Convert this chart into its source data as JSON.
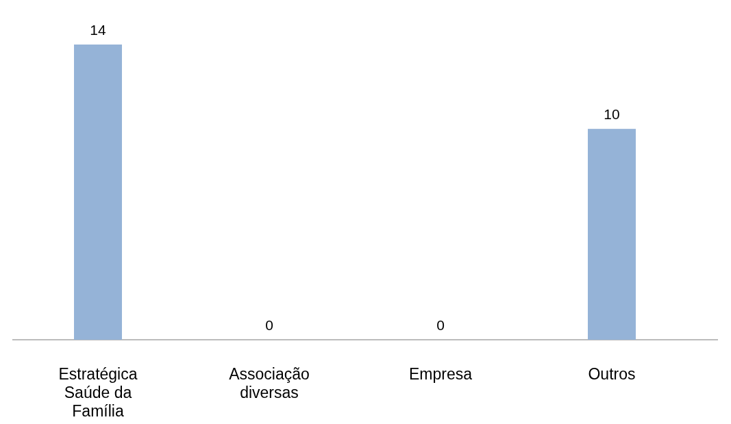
{
  "chart_data": {
    "type": "bar",
    "categories": [
      "Estratégica Saúde da Família",
      "Associação diversas",
      "Empresa",
      "Outros"
    ],
    "values": [
      14,
      0,
      0,
      10
    ],
    "color": "#95b3d7",
    "data_labels": true
  }
}
